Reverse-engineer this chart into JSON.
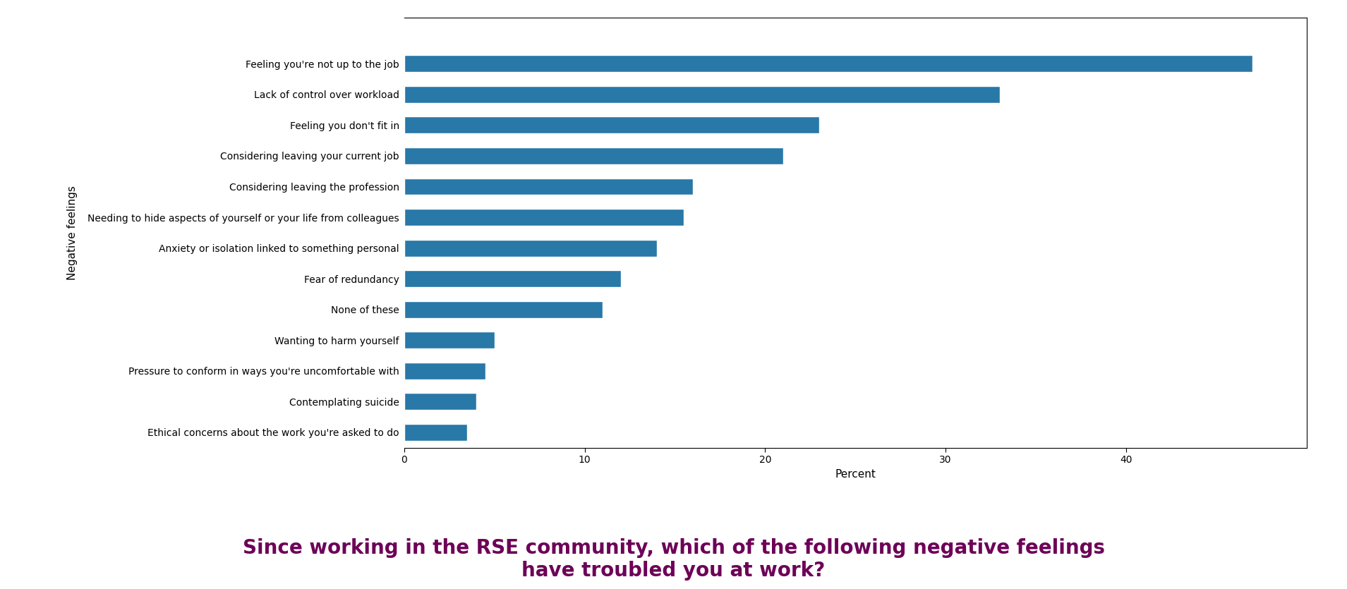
{
  "categories": [
    "Feeling you're not up to the job",
    "Lack of control over workload",
    "Feeling you don't fit in",
    "Considering leaving your current job",
    "Considering leaving the profession",
    "Needing to hide aspects of yourself or your life from colleagues",
    "Anxiety or isolation linked to something personal",
    "Fear of redundancy",
    "None of these",
    "Wanting to harm yourself",
    "Pressure to conform in ways you're uncomfortable with",
    "Contemplating suicide",
    "Ethical concerns about the work you're asked to do"
  ],
  "values": [
    47,
    33,
    23,
    21,
    16,
    15.5,
    14,
    12,
    11,
    5,
    4.5,
    4,
    3.5
  ],
  "bar_color": "#2878a8",
  "ylabel": "Negative feelings",
  "xlabel": "Percent",
  "xlim": [
    0,
    50
  ],
  "xticks": [
    0,
    10,
    20,
    30,
    40
  ],
  "title_text": "Since working in the RSE community, which of the following negative feelings\nhave troubled you at work?",
  "title_color": "#6d0057",
  "title_fontsize": 20,
  "title_fontweight": "bold",
  "bar_height": 0.55,
  "ylabel_fontsize": 11,
  "xlabel_fontsize": 11,
  "tick_fontsize": 10,
  "fig_width": 19.09,
  "fig_height": 8.35
}
